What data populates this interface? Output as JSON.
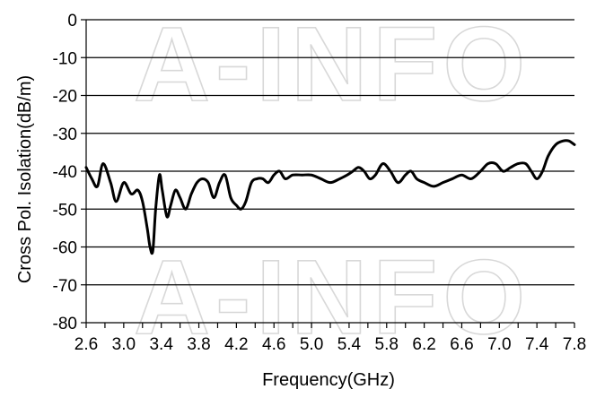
{
  "watermark": "A-INFO",
  "chart_data": {
    "type": "line",
    "xlabel": "Frequency(GHz)",
    "ylabel": "Cross Pol. Isolation(dB/m)",
    "xlim": [
      2.6,
      7.8
    ],
    "ylim": [
      -80,
      0
    ],
    "x_ticks": [
      "2.6",
      "3.0",
      "3.4",
      "3.8",
      "4.2",
      "4.6",
      "5.0",
      "5.4",
      "5.8",
      "6.2",
      "6.6",
      "7.0",
      "7.4",
      "7.8"
    ],
    "x_tick_values": [
      2.6,
      3.0,
      3.4,
      3.8,
      4.2,
      4.6,
      5.0,
      5.4,
      5.8,
      6.2,
      6.6,
      7.0,
      7.4,
      7.8
    ],
    "minor_x_ticks": [
      2.8,
      3.2,
      3.6,
      4.0,
      4.4,
      4.8,
      5.2,
      5.6,
      6.0,
      6.4,
      6.8,
      7.2,
      7.6
    ],
    "y_ticks": [
      "0",
      "-10",
      "-20",
      "-30",
      "-40",
      "-50",
      "-60",
      "-70",
      "-80"
    ],
    "y_tick_values": [
      0,
      -10,
      -20,
      -30,
      -40,
      -50,
      -60,
      -70,
      -80
    ],
    "grid": "horizontal",
    "line_color": "#000000",
    "series": [
      {
        "x": [
          2.6,
          2.66,
          2.72,
          2.78,
          2.86,
          2.92,
          3.0,
          3.08,
          3.15,
          3.2,
          3.25,
          3.28,
          3.31,
          3.34,
          3.38,
          3.41,
          3.46,
          3.5,
          3.55,
          3.6,
          3.66,
          3.72,
          3.78,
          3.84,
          3.9,
          3.96,
          4.02,
          4.08,
          4.14,
          4.2,
          4.25,
          4.3,
          4.36,
          4.42,
          4.48,
          4.54,
          4.6,
          4.66,
          4.72,
          4.8,
          4.9,
          5.0,
          5.1,
          5.2,
          5.3,
          5.38,
          5.44,
          5.5,
          5.56,
          5.62,
          5.68,
          5.76,
          5.84,
          5.92,
          6.0,
          6.06,
          6.12,
          6.2,
          6.3,
          6.4,
          6.5,
          6.6,
          6.7,
          6.8,
          6.88,
          6.96,
          7.04,
          7.12,
          7.2,
          7.28,
          7.34,
          7.4,
          7.46,
          7.52,
          7.6,
          7.68,
          7.74,
          7.8
        ],
        "values": [
          -39,
          -42,
          -44,
          -38,
          -43,
          -48,
          -43,
          -46,
          -45,
          -48,
          -55,
          -60,
          -61,
          -50,
          -41,
          -45,
          -52,
          -49,
          -45,
          -47,
          -50,
          -46,
          -43,
          -42,
          -43,
          -47,
          -43,
          -41,
          -47,
          -49,
          -50,
          -48,
          -43,
          -42,
          -42,
          -43,
          -41,
          -40,
          -42,
          -41,
          -41,
          -41,
          -42,
          -43,
          -42,
          -41,
          -40,
          -39,
          -40,
          -42,
          -41,
          -38,
          -40,
          -43,
          -41,
          -40,
          -42,
          -43,
          -44,
          -43,
          -42,
          -41,
          -42,
          -40,
          -38,
          -38,
          -40,
          -39,
          -38,
          -38,
          -40,
          -42,
          -40,
          -36,
          -33,
          -32,
          -32,
          -33
        ]
      }
    ]
  }
}
